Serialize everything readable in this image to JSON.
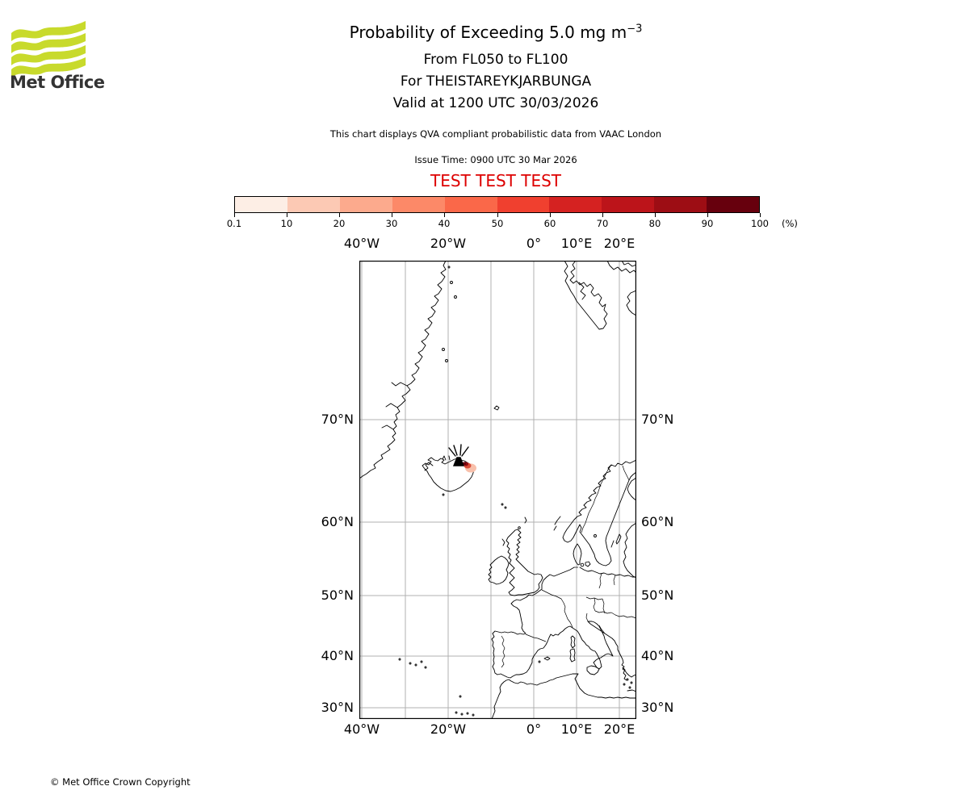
{
  "header": {
    "logo_text": "Met Office",
    "title_main": "Probability of Exceeding 5.0 mg m",
    "title_sup": "−3",
    "subtitle_fl": "From FL050 to FL100",
    "subtitle_volcano": "For THEISTAREYKJARBUNGA",
    "subtitle_valid": "Valid at 1200 UTC 30/03/2026",
    "note": "This chart displays QVA compliant probabilistic data from VAAC London",
    "issue_time": "Issue Time: 0900 UTC 30 Mar 2026",
    "test_banner": "TEST TEST TEST"
  },
  "colorbar": {
    "tick_labels": [
      "0.1",
      "10",
      "20",
      "30",
      "40",
      "50",
      "60",
      "70",
      "80",
      "90",
      "100"
    ],
    "unit_label": "(%)",
    "colors": [
      "#fdeee5",
      "#fcc9b4",
      "#fcaa8d",
      "#fc8968",
      "#fa6849",
      "#f0402f",
      "#d52221",
      "#bc141a",
      "#9d0d14",
      "#67000d"
    ]
  },
  "map": {
    "x_tick_labels": [
      "40°W",
      "20°W",
      "0°",
      "10°E",
      "20°E"
    ],
    "y_tick_labels": [
      "70°N",
      "60°N",
      "50°N",
      "40°N",
      "30°N"
    ]
  },
  "footer": {
    "copyright": "© Met Office Crown Copyright"
  },
  "colors": {
    "test_red": "#dd0000",
    "grid_gray": "#b0b0b0",
    "logo_green": "#c8da2c"
  }
}
